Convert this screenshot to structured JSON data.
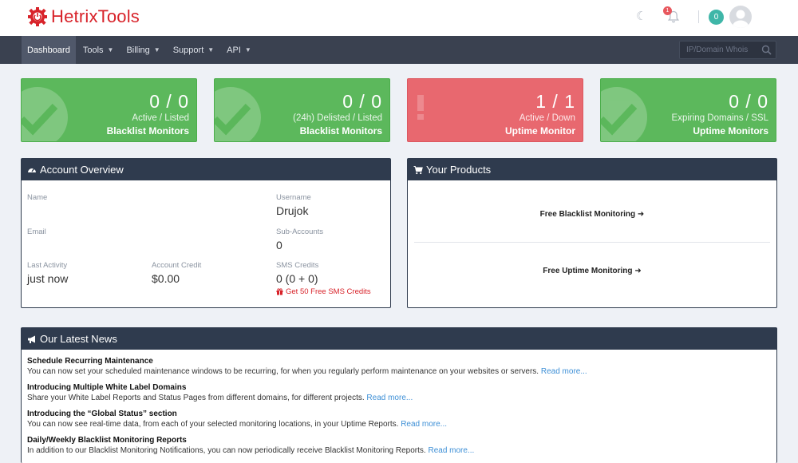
{
  "brand": {
    "name": "HetrixTools",
    "color": "#d8232a"
  },
  "header": {
    "notifications_count": "1",
    "counter_badge": "0"
  },
  "nav": {
    "items": [
      {
        "label": "Dashboard",
        "dropdown": false,
        "active": true
      },
      {
        "label": "Tools",
        "dropdown": true
      },
      {
        "label": "Billing",
        "dropdown": true
      },
      {
        "label": "Support",
        "dropdown": true
      },
      {
        "label": "API",
        "dropdown": true
      }
    ],
    "whois_placeholder": "IP/Domain Whois"
  },
  "stats": [
    {
      "value": "0 / 0",
      "sub": "Active / Listed",
      "label": "Blacklist Monitors",
      "status": "ok",
      "color": "#5cb85c"
    },
    {
      "value": "0 / 0",
      "sub": "(24h) Delisted / Listed",
      "label": "Blacklist Monitors",
      "status": "ok",
      "color": "#5cb85c"
    },
    {
      "value": "1 / 1",
      "sub": "Active / Down",
      "label": "Uptime Monitor",
      "status": "alert",
      "color": "#e8686f"
    },
    {
      "value": "0 / 0",
      "sub": "Expiring Domains / SSL",
      "label": "Uptime Monitors",
      "status": "ok",
      "color": "#5cb85c"
    }
  ],
  "account": {
    "title": "Account Overview",
    "name_label": "Name",
    "name_value": "",
    "username_label": "Username",
    "username_value": "Drujok",
    "email_label": "Email",
    "email_value": "",
    "subaccounts_label": "Sub-Accounts",
    "subaccounts_value": "0",
    "last_activity_label": "Last Activity",
    "last_activity_value": "just now",
    "credit_label": "Account Credit",
    "credit_value": "$0.00",
    "sms_label": "SMS Credits",
    "sms_value": "0 (0 + 0)",
    "sms_link": "Get 50 Free SMS Credits"
  },
  "products": {
    "title": "Your Products",
    "items": [
      "Free Blacklist Monitoring",
      "Free Uptime Monitoring"
    ]
  },
  "news": {
    "title": "Our Latest News",
    "read_more": "Read more...",
    "items": [
      {
        "title": "Schedule Recurring Maintenance",
        "text": "You can now set your scheduled maintenance windows to be recurring, for when you regularly perform maintenance on your websites or servers."
      },
      {
        "title": "Introducing Multiple White Label Domains",
        "text": "Share your White Label Reports and Status Pages from different domains, for different projects."
      },
      {
        "title": "Introducing the “Global Status” section",
        "text": "You can now see real-time data, from each of your selected monitoring locations, in your Uptime Reports."
      },
      {
        "title": "Daily/Weekly Blacklist Monitoring Reports",
        "text": "In addition to our Blacklist Monitoring Notifications, you can now periodically receive Blacklist Monitoring Reports."
      }
    ]
  }
}
